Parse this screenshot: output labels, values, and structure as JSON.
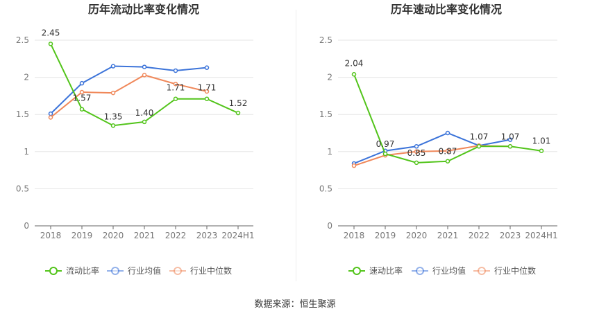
{
  "source_text": "数据来源：恒生聚源",
  "chart_data": [
    {
      "type": "line",
      "title": "历年流动比率变化情况",
      "categories": [
        "2018",
        "2019",
        "2020",
        "2021",
        "2022",
        "2023",
        "2024H1"
      ],
      "ylim": [
        0,
        2.5
      ],
      "yticks": [
        "0",
        "0.5",
        "1",
        "1.5",
        "2",
        "2.5"
      ],
      "grid": true,
      "legend_position": "bottom",
      "series": [
        {
          "name": "流动比率",
          "color": "#52c41a",
          "values": [
            2.45,
            1.57,
            1.35,
            1.4,
            1.71,
            1.71,
            1.52
          ],
          "labels": [
            "2.45",
            "1.57",
            "1.35",
            "1.40",
            "1.71",
            "1.71",
            "1.52"
          ]
        },
        {
          "name": "行业均值",
          "color": "#3b73d9",
          "values": [
            1.51,
            1.92,
            2.15,
            2.14,
            2.09,
            2.13,
            null
          ]
        },
        {
          "name": "行业中位数",
          "color": "#f0885a",
          "values": [
            1.46,
            1.8,
            1.79,
            2.03,
            1.91,
            1.81,
            null
          ]
        }
      ]
    },
    {
      "type": "line",
      "title": "历年速动比率变化情况",
      "categories": [
        "2018",
        "2019",
        "2020",
        "2021",
        "2022",
        "2023",
        "2024H1"
      ],
      "ylim": [
        0,
        2.5
      ],
      "yticks": [
        "0",
        "0.5",
        "1",
        "1.5",
        "2",
        "2.5"
      ],
      "grid": true,
      "legend_position": "bottom",
      "series": [
        {
          "name": "速动比率",
          "color": "#52c41a",
          "values": [
            2.04,
            0.97,
            0.85,
            0.87,
            1.07,
            1.07,
            1.01
          ],
          "labels": [
            "2.04",
            "0.97",
            "0.85",
            "0.87",
            "1.07",
            "1.07",
            "1.01"
          ]
        },
        {
          "name": "行业均值",
          "color": "#3b73d9",
          "values": [
            0.84,
            1.01,
            1.07,
            1.25,
            1.08,
            1.16,
            null
          ]
        },
        {
          "name": "行业中位数",
          "color": "#f0885a",
          "values": [
            0.81,
            0.95,
            1.0,
            1.01,
            1.08,
            1.07,
            null
          ]
        }
      ]
    }
  ]
}
